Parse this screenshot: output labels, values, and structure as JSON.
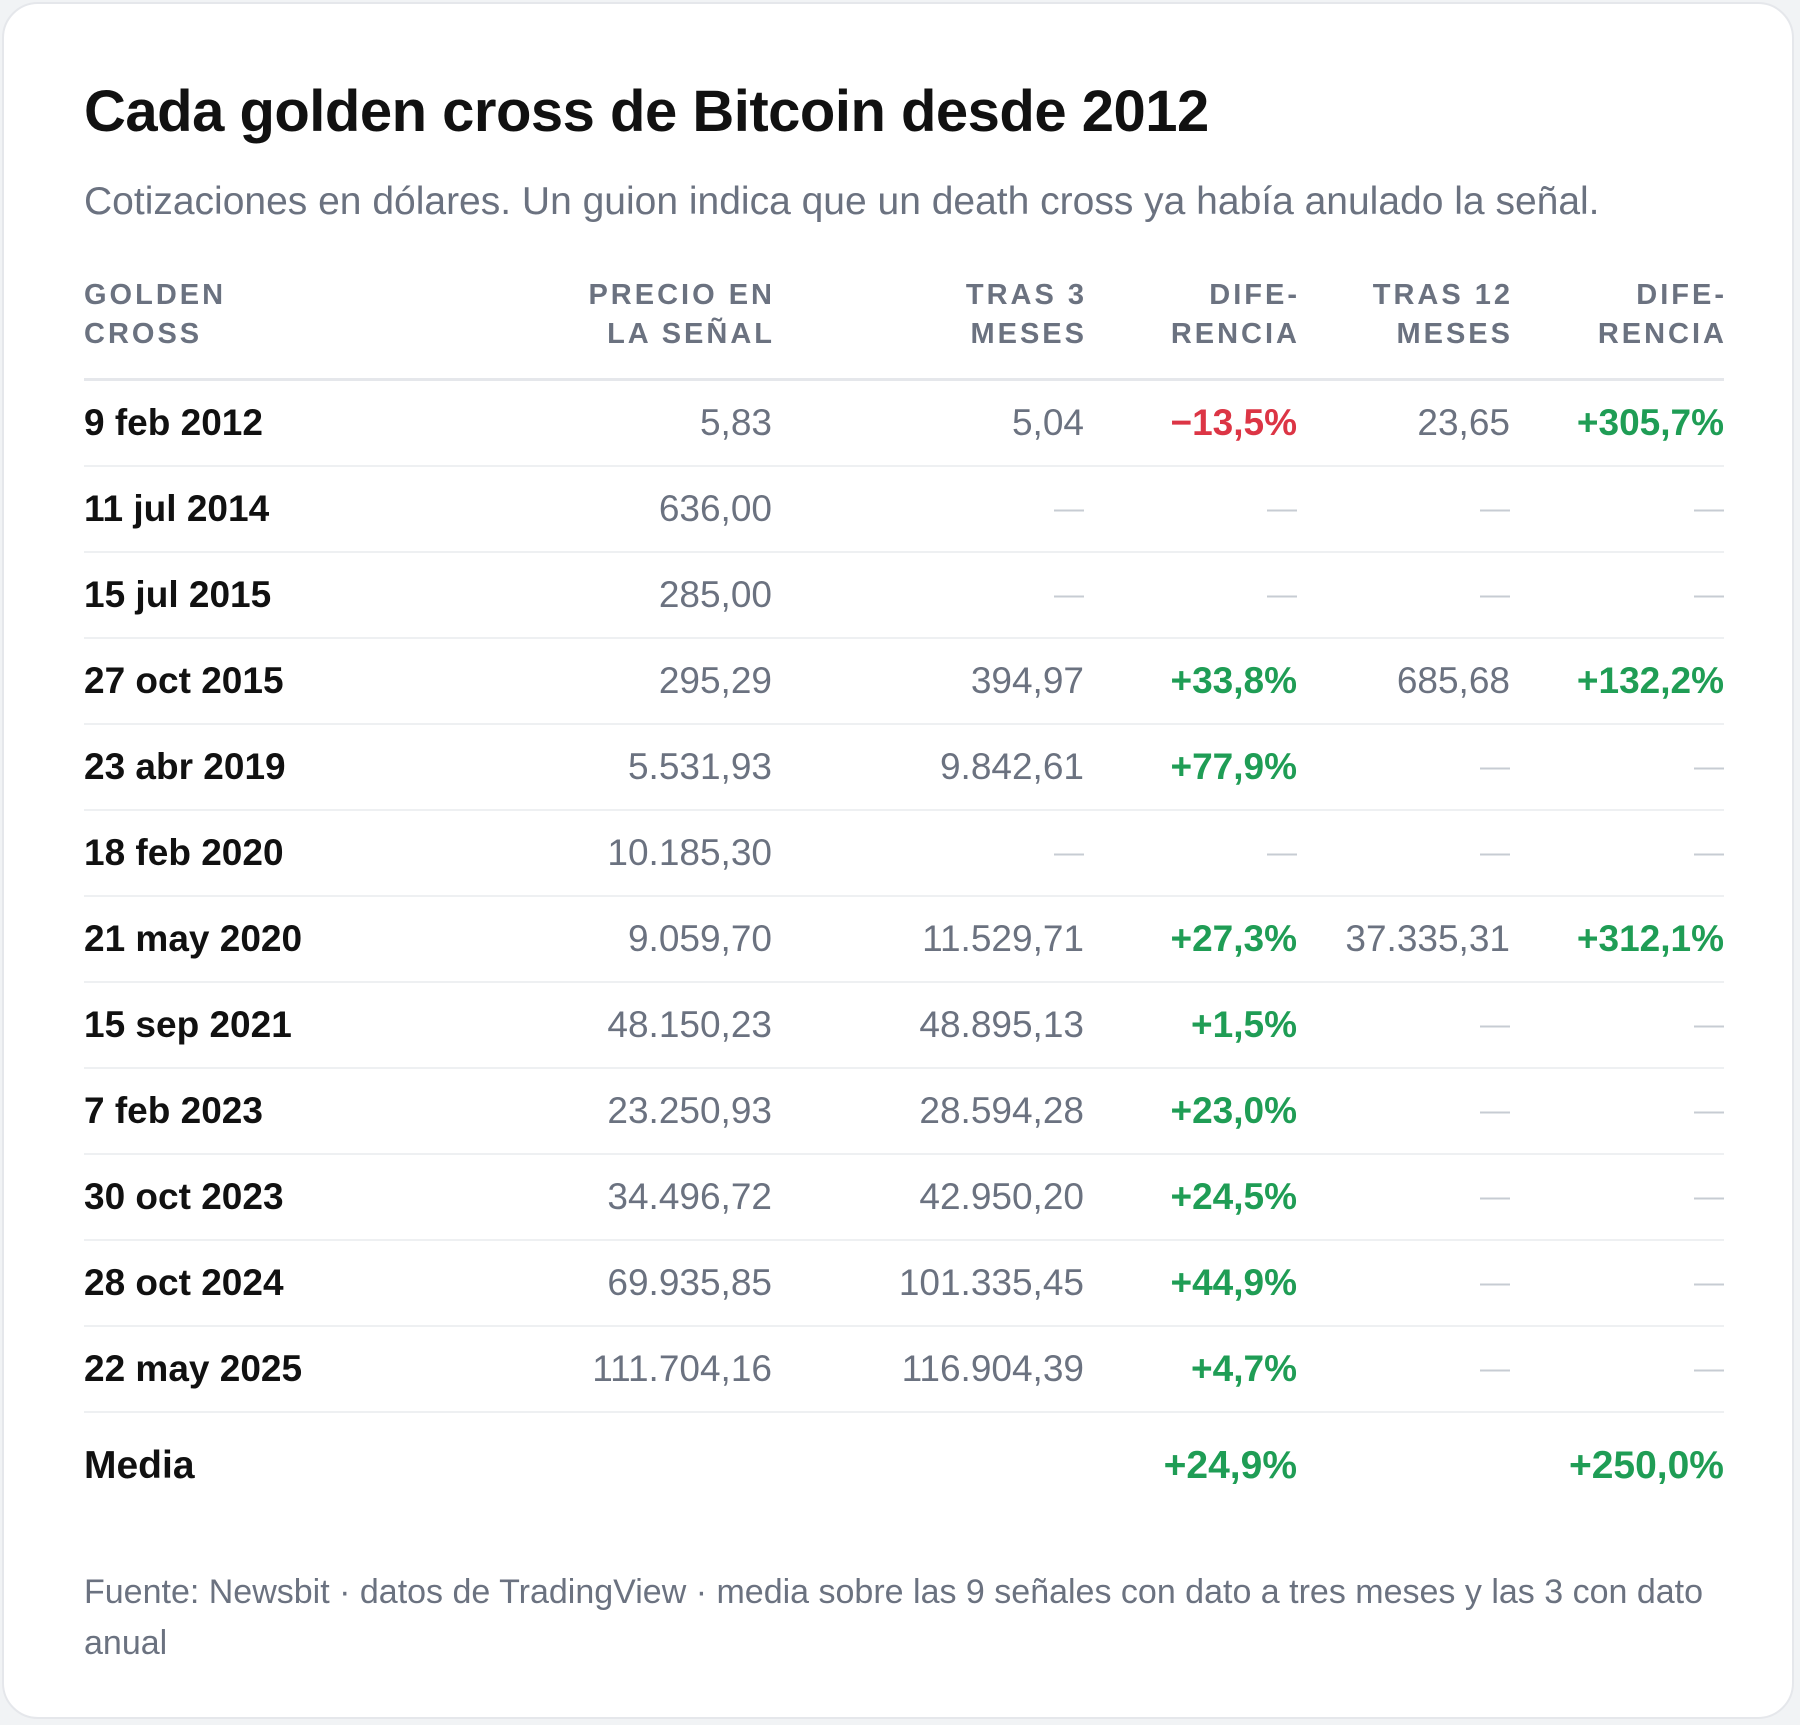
{
  "title": "Cada golden cross de Bitcoin desde 2012",
  "subtitle": "Cotizaciones en dólares. Un guion indica que un death cross ya había anulado la señal.",
  "colors": {
    "positive": "#1f9d55",
    "negative": "#dc3545",
    "muted": "#6b7280",
    "text": "#111111"
  },
  "chart_data": {
    "type": "table",
    "columns": [
      [
        "GOLDEN",
        "CROSS"
      ],
      [
        "PRECIO EN",
        "LA SEÑAL"
      ],
      [
        "TRAS 3",
        "MESES"
      ],
      [
        "DIFE-",
        "RENCIA"
      ],
      [
        "TRAS 12",
        "MESES"
      ],
      [
        "DIFE-",
        "RENCIA"
      ]
    ],
    "rows": [
      [
        "9 feb 2012",
        "5,83",
        "5,04",
        "−13,5%",
        "23,65",
        "+305,7%"
      ],
      [
        "11 jul 2014",
        "636,00",
        "—",
        "—",
        "—",
        "—"
      ],
      [
        "15 jul 2015",
        "285,00",
        "—",
        "—",
        "—",
        "—"
      ],
      [
        "27 oct 2015",
        "295,29",
        "394,97",
        "+33,8%",
        "685,68",
        "+132,2%"
      ],
      [
        "23 abr 2019",
        "5.531,93",
        "9.842,61",
        "+77,9%",
        "—",
        "—"
      ],
      [
        "18 feb 2020",
        "10.185,30",
        "—",
        "—",
        "—",
        "—"
      ],
      [
        "21 may 2020",
        "9.059,70",
        "11.529,71",
        "+27,3%",
        "37.335,31",
        "+312,1%"
      ],
      [
        "15 sep 2021",
        "48.150,23",
        "48.895,13",
        "+1,5%",
        "—",
        "—"
      ],
      [
        "7 feb 2023",
        "23.250,93",
        "28.594,28",
        "+23,0%",
        "—",
        "—"
      ],
      [
        "30 oct 2023",
        "34.496,72",
        "42.950,20",
        "+24,5%",
        "—",
        "—"
      ],
      [
        "28 oct 2024",
        "69.935,85",
        "101.335,45",
        "+44,9%",
        "—",
        "—"
      ],
      [
        "22 may 2025",
        "111.704,16",
        "116.904,39",
        "+4,7%",
        "—",
        "—"
      ]
    ],
    "summary": [
      "Media",
      "",
      "",
      "+24,9%",
      "",
      "+250,0%"
    ]
  },
  "footnote": "Fuente: Newsbit · datos de TradingView · media sobre las 9 señales con dato a tres meses y las 3 con dato anual"
}
